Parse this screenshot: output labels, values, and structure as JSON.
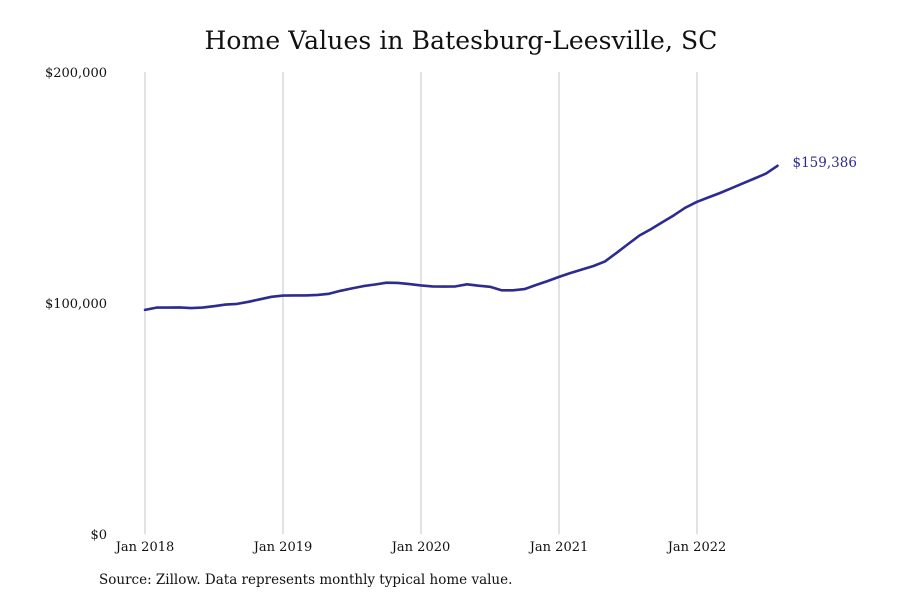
{
  "chart_data": {
    "type": "line",
    "title": "Home Values in Batesburg-Leesville, SC",
    "xlabel": "",
    "ylabel": "",
    "ylim": [
      0,
      200000
    ],
    "y_ticks": [
      {
        "value": 0,
        "label": "$0"
      },
      {
        "value": 100000,
        "label": "$100,000"
      },
      {
        "value": 200000,
        "label": "$200,000"
      }
    ],
    "x_ticks": [
      "Jan 2018",
      "Jan 2019",
      "Jan 2020",
      "Jan 2021",
      "Jan 2022"
    ],
    "x_range": [
      "2018-01",
      "2022-08"
    ],
    "grid": {
      "vertical": true,
      "horizontal": false
    },
    "colors": {
      "line": "#2e2b8f",
      "grid": "#c4c4c4",
      "text": "#111111"
    },
    "series": [
      {
        "x": [
          "2018-01",
          "2018-02",
          "2018-03",
          "2018-04",
          "2018-05",
          "2018-06",
          "2018-07",
          "2018-08",
          "2018-09",
          "2018-10",
          "2018-11",
          "2018-12",
          "2019-01",
          "2019-02",
          "2019-03",
          "2019-04",
          "2019-05",
          "2019-06",
          "2019-07",
          "2019-08",
          "2019-09",
          "2019-10",
          "2019-11",
          "2019-12",
          "2020-01",
          "2020-02",
          "2020-03",
          "2020-04",
          "2020-05",
          "2020-06",
          "2020-07",
          "2020-08",
          "2020-09",
          "2020-10",
          "2020-11",
          "2020-12",
          "2021-01",
          "2021-02",
          "2021-03",
          "2021-04",
          "2021-05",
          "2021-06",
          "2021-07",
          "2021-08",
          "2021-09",
          "2021-10",
          "2021-11",
          "2021-12",
          "2022-01",
          "2022-02",
          "2022-03",
          "2022-04",
          "2022-05",
          "2022-06",
          "2022-07",
          "2022-08"
        ],
        "values": [
          97000,
          98000,
          98000,
          98100,
          97800,
          98000,
          98600,
          99300,
          99600,
          100500,
          101600,
          102700,
          103200,
          103300,
          103300,
          103500,
          104000,
          105300,
          106300,
          107300,
          108000,
          108800,
          108700,
          108200,
          107600,
          107200,
          107100,
          107200,
          108100,
          107500,
          107000,
          105500,
          105500,
          106000,
          107800,
          109500,
          111300,
          113000,
          114500,
          116000,
          118000,
          121700,
          125500,
          129200,
          132000,
          135000,
          138000,
          141300,
          143800,
          145700,
          147600,
          149700,
          151800,
          153900,
          156000,
          159386
        ]
      }
    ],
    "annotations": [
      {
        "text": "$159,386",
        "x": "2022-08",
        "y": 159386
      }
    ]
  },
  "source_note": "Source: Zillow. Data represents monthly typical home value."
}
